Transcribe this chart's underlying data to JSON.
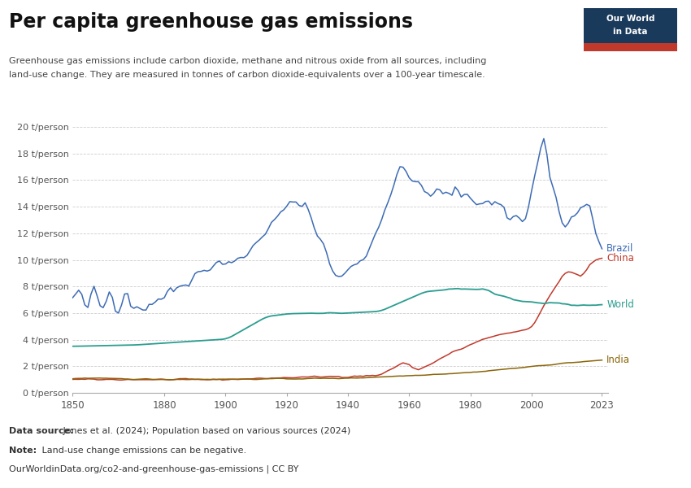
{
  "title": "Per capita greenhouse gas emissions",
  "subtitle_line1": "Greenhouse gas emissions include carbon dioxide, methane and nitrous oxide from all sources, including",
  "subtitle_line2": "land-use change. They are measured in tonnes of carbon dioxide-equivalents over a 100-year timescale.",
  "footnote_ds_bold": "Data source:",
  "footnote_ds_rest": " Jones et al. (2024); Population based on various sources (2024)",
  "footnote_note_bold": "Note:",
  "footnote_note_rest": " Land-use change emissions can be negative.",
  "footnote_url": "OurWorldinData.org/co2-and-greenhouse-gas-emissions | CC BY",
  "ylim": [
    0,
    20
  ],
  "yticks": [
    0,
    2,
    4,
    6,
    8,
    10,
    12,
    14,
    16,
    18,
    20
  ],
  "xlim": [
    1850,
    2025
  ],
  "xticks": [
    1850,
    1880,
    1900,
    1920,
    1940,
    1960,
    1980,
    2000,
    2023
  ],
  "colors": {
    "Brazil": "#3D6CB5",
    "China": "#C0392B",
    "World": "#2A9D8F",
    "India": "#8B6508"
  },
  "background_color": "#FFFFFF",
  "grid_color": "#CCCCCC",
  "owid_box_bg": "#1A3A5C",
  "owid_box_red": "#C0392B",
  "title_color": "#111111",
  "subtitle_color": "#444444",
  "tick_color": "#555555",
  "footnote_color": "#333333"
}
